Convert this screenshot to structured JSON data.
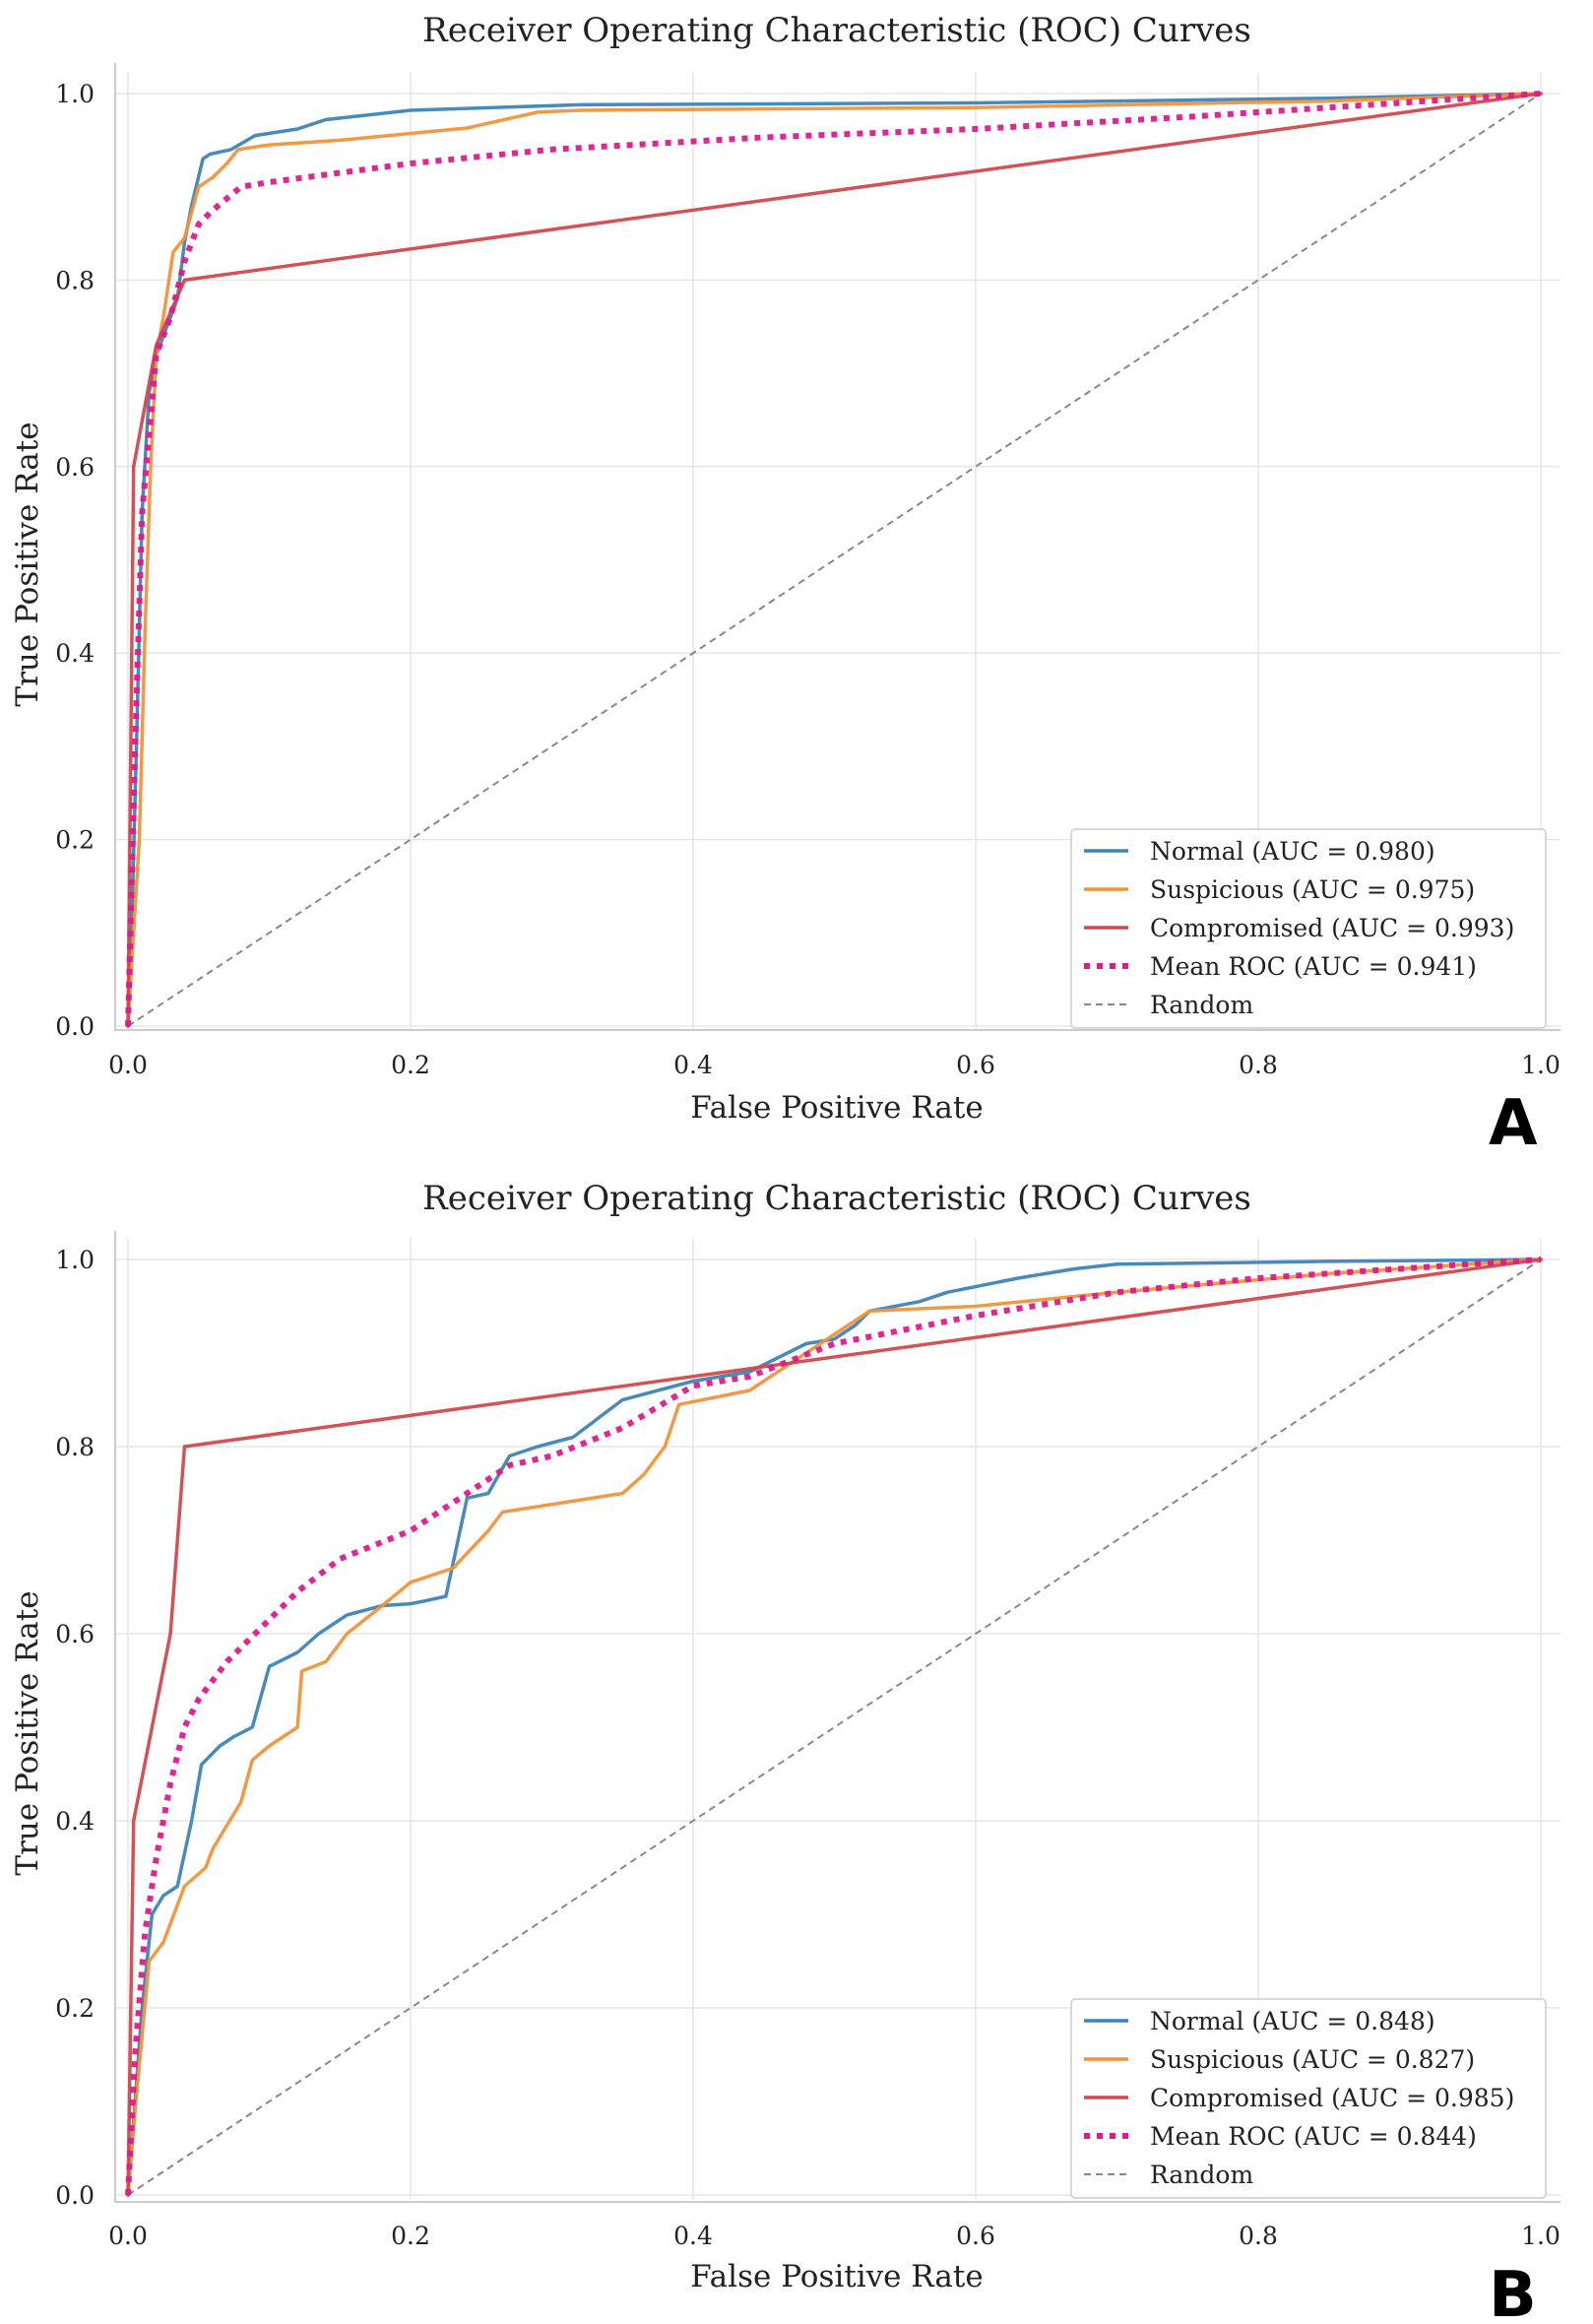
{
  "figure": {
    "panel_letters": [
      "A",
      "B"
    ]
  },
  "chart_data": [
    {
      "type": "line",
      "panel": "A",
      "title": "Receiver Operating Characteristic (ROC) Curves",
      "xlabel": "False Positive Rate",
      "ylabel": "True Positive Rate",
      "xlim": [
        0,
        1
      ],
      "ylim": [
        0,
        1
      ],
      "xticks": [
        "0.0",
        "0.2",
        "0.4",
        "0.6",
        "0.8",
        "1.0"
      ],
      "yticks": [
        "0.0",
        "0.2",
        "0.4",
        "0.6",
        "0.8",
        "1.0"
      ],
      "grid": true,
      "legend_position": "lower-right",
      "series": [
        {
          "name": "Normal (AUC = 0.980)",
          "color": "#3f84b8",
          "style": "solid",
          "x": [
            0,
            0.003,
            0.006,
            0.01,
            0.015,
            0.02,
            0.025,
            0.03,
            0.035,
            0.04,
            0.045,
            0.053,
            0.058,
            0.073,
            0.09,
            0.12,
            0.14,
            0.2,
            0.32,
            0.6,
            0.85,
            1.0
          ],
          "y": [
            0,
            0.13,
            0.3,
            0.55,
            0.68,
            0.72,
            0.74,
            0.76,
            0.78,
            0.84,
            0.88,
            0.93,
            0.935,
            0.94,
            0.955,
            0.962,
            0.972,
            0.982,
            0.988,
            0.99,
            0.995,
            1.0
          ]
        },
        {
          "name": "Suspicious (AUC = 0.975)",
          "color": "#f0943a",
          "style": "solid",
          "x": [
            0,
            0.004,
            0.008,
            0.012,
            0.016,
            0.02,
            0.025,
            0.032,
            0.04,
            0.05,
            0.06,
            0.07,
            0.078,
            0.1,
            0.15,
            0.24,
            0.29,
            0.32,
            0.6,
            0.85,
            1.0
          ],
          "y": [
            0,
            0.1,
            0.2,
            0.42,
            0.6,
            0.72,
            0.76,
            0.83,
            0.845,
            0.9,
            0.91,
            0.925,
            0.94,
            0.945,
            0.95,
            0.963,
            0.98,
            0.982,
            0.985,
            0.992,
            1.0
          ]
        },
        {
          "name": "Compromised (AUC = 0.993)",
          "color": "#d0494c",
          "style": "solid",
          "x": [
            0,
            0.004,
            0.02,
            0.04,
            1.0
          ],
          "y": [
            0,
            0.6,
            0.73,
            0.8,
            1.0
          ]
        },
        {
          "name": "Mean ROC (AUC = 0.941)",
          "color": "#e0198f",
          "style": "dotted",
          "x": [
            0,
            0.005,
            0.01,
            0.02,
            0.03,
            0.04,
            0.05,
            0.06,
            0.08,
            0.1,
            0.2,
            0.3,
            0.45,
            0.6,
            0.75,
            0.85,
            1.0
          ],
          "y": [
            0,
            0.3,
            0.55,
            0.72,
            0.76,
            0.82,
            0.86,
            0.875,
            0.9,
            0.905,
            0.925,
            0.94,
            0.953,
            0.962,
            0.975,
            0.985,
            1.0
          ]
        },
        {
          "name": "Random",
          "color": "#888888",
          "style": "dashed",
          "x": [
            0,
            1
          ],
          "y": [
            0,
            1
          ]
        }
      ]
    },
    {
      "type": "line",
      "panel": "B",
      "title": "Receiver Operating Characteristic (ROC) Curves",
      "xlabel": "False Positive Rate",
      "ylabel": "True Positive Rate",
      "xlim": [
        0,
        1
      ],
      "ylim": [
        0,
        1
      ],
      "xticks": [
        "0.0",
        "0.2",
        "0.4",
        "0.6",
        "0.8",
        "1.0"
      ],
      "yticks": [
        "0.0",
        "0.2",
        "0.4",
        "0.6",
        "0.8",
        "1.0"
      ],
      "grid": true,
      "legend_position": "lower-right",
      "series": [
        {
          "name": "Normal (AUC = 0.848)",
          "color": "#3f84b8",
          "style": "solid",
          "x": [
            0,
            0.005,
            0.01,
            0.017,
            0.025,
            0.035,
            0.045,
            0.052,
            0.065,
            0.075,
            0.088,
            0.1,
            0.12,
            0.135,
            0.155,
            0.18,
            0.2,
            0.21,
            0.225,
            0.24,
            0.255,
            0.27,
            0.29,
            0.315,
            0.35,
            0.4,
            0.44,
            0.48,
            0.5,
            0.515,
            0.525,
            0.56,
            0.58,
            0.63,
            0.67,
            0.7,
            0.85,
            1.0
          ],
          "y": [
            0,
            0.1,
            0.2,
            0.3,
            0.32,
            0.33,
            0.4,
            0.46,
            0.48,
            0.49,
            0.5,
            0.565,
            0.58,
            0.6,
            0.62,
            0.63,
            0.632,
            0.635,
            0.64,
            0.745,
            0.75,
            0.79,
            0.8,
            0.81,
            0.85,
            0.87,
            0.88,
            0.91,
            0.915,
            0.93,
            0.945,
            0.955,
            0.965,
            0.98,
            0.99,
            0.995,
            0.998,
            1.0
          ]
        },
        {
          "name": "Suspicious (AUC = 0.827)",
          "color": "#f0943a",
          "style": "solid",
          "x": [
            0,
            0.005,
            0.01,
            0.015,
            0.025,
            0.04,
            0.055,
            0.06,
            0.08,
            0.088,
            0.1,
            0.12,
            0.123,
            0.14,
            0.155,
            0.18,
            0.2,
            0.23,
            0.255,
            0.265,
            0.35,
            0.365,
            0.38,
            0.39,
            0.44,
            0.46,
            0.5,
            0.525,
            0.6,
            0.7,
            0.85,
            1.0
          ],
          "y": [
            0,
            0.09,
            0.17,
            0.25,
            0.27,
            0.33,
            0.35,
            0.37,
            0.42,
            0.465,
            0.48,
            0.5,
            0.56,
            0.57,
            0.6,
            0.63,
            0.655,
            0.67,
            0.71,
            0.73,
            0.75,
            0.77,
            0.8,
            0.845,
            0.86,
            0.88,
            0.92,
            0.945,
            0.95,
            0.965,
            0.985,
            1.0
          ]
        },
        {
          "name": "Compromised (AUC = 0.985)",
          "color": "#d0494c",
          "style": "solid",
          "x": [
            0,
            0.004,
            0.03,
            0.04,
            1.0
          ],
          "y": [
            0,
            0.4,
            0.6,
            0.8,
            1.0
          ]
        },
        {
          "name": "Mean ROC (AUC = 0.844)",
          "color": "#e0198f",
          "style": "dotted",
          "x": [
            0,
            0.005,
            0.012,
            0.02,
            0.03,
            0.04,
            0.05,
            0.06,
            0.07,
            0.09,
            0.12,
            0.15,
            0.2,
            0.24,
            0.27,
            0.3,
            0.35,
            0.4,
            0.44,
            0.5,
            0.6,
            0.7,
            0.8,
            1.0
          ],
          "y": [
            0,
            0.15,
            0.28,
            0.36,
            0.44,
            0.5,
            0.53,
            0.55,
            0.57,
            0.6,
            0.645,
            0.68,
            0.71,
            0.75,
            0.78,
            0.79,
            0.82,
            0.865,
            0.875,
            0.91,
            0.94,
            0.965,
            0.98,
            1.0
          ]
        },
        {
          "name": "Random",
          "color": "#888888",
          "style": "dashed",
          "x": [
            0,
            1
          ],
          "y": [
            0,
            1
          ]
        }
      ]
    }
  ]
}
